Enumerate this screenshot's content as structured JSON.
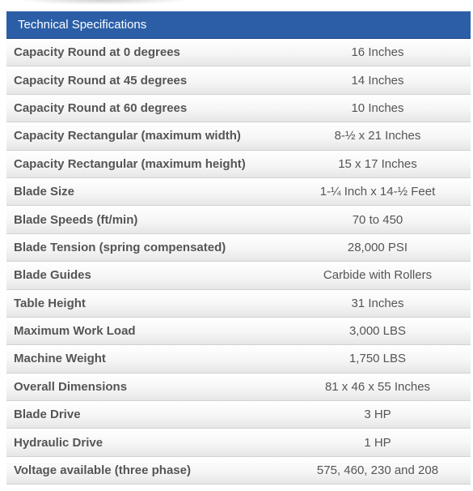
{
  "header": {
    "title": "Technical Specifications"
  },
  "rows": [
    {
      "label": "Capacity Round at 0 degrees",
      "value": "16 Inches"
    },
    {
      "label": "Capacity Round at 45 degrees",
      "value": "14 Inches"
    },
    {
      "label": "Capacity Round at 60 degrees",
      "value": "10 Inches"
    },
    {
      "label": "Capacity Rectangular (maximum width)",
      "value": "8-½ x 21 Inches"
    },
    {
      "label": "Capacity Rectangular (maximum height)",
      "value": "15 x 17 Inches"
    },
    {
      "label": "Blade Size",
      "value": "1-¼ Inch x 14-½ Feet"
    },
    {
      "label": "Blade Speeds (ft/min)",
      "value": "70 to 450"
    },
    {
      "label": "Blade Tension (spring compensated)",
      "value": "28,000 PSI"
    },
    {
      "label": "Blade Guides",
      "value": "Carbide with Rollers"
    },
    {
      "label": "Table Height",
      "value": "31 Inches"
    },
    {
      "label": "Maximum Work Load",
      "value": "3,000 LBS"
    },
    {
      "label": "Machine Weight",
      "value": "1,750 LBS"
    },
    {
      "label": "Overall Dimensions",
      "value": "81 x 46 x 55 Inches"
    },
    {
      "label": "Blade Drive",
      "value": "3 HP"
    },
    {
      "label": "Hydraulic Drive",
      "value": "1 HP"
    },
    {
      "label": "Voltage available (three phase)",
      "value": "575, 460, 230 and 208"
    }
  ],
  "colors": {
    "header_background": "#2b5ea7",
    "header_text": "#ffffff",
    "row_text": "#555555",
    "row_border": "#d2d2d2"
  }
}
